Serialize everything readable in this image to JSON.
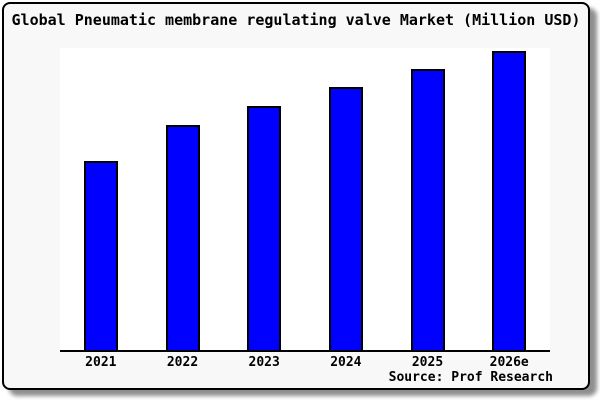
{
  "chart_data": {
    "type": "bar",
    "title": "Global Pneumatic membrane regulating valve Market (Million USD)",
    "source_caption": "Source: Prof Research",
    "categories": [
      "2021",
      "2022",
      "2023",
      "2024",
      "2025",
      "2026e"
    ],
    "values": [
      63.2,
      75.3,
      81.6,
      88.0,
      94.0,
      100.0
    ],
    "value_unit": "relative index (2026e = 100); y-axis has no tick labels in chart",
    "xlabel": "",
    "ylabel": "",
    "ylim": [
      0,
      101
    ],
    "grid": false,
    "legend": false,
    "bar_color": "#0000ff",
    "bar_border_color": "#000000"
  },
  "colors": {
    "card_background": "#f8f8f8",
    "plot_background": "#ffffff",
    "border": "#000000",
    "shadow": "#8f8f8f",
    "text": "#000000"
  }
}
